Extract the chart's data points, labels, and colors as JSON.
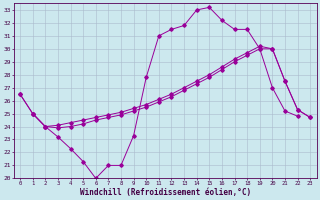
{
  "xlabel": "Windchill (Refroidissement éolien,°C)",
  "background_color": "#cce8ee",
  "line_color": "#990099",
  "grid_color": "#aabbcc",
  "xlim": [
    -0.5,
    23.5
  ],
  "ylim": [
    20,
    33.5
  ],
  "xticks": [
    0,
    1,
    2,
    3,
    4,
    5,
    6,
    7,
    8,
    9,
    10,
    11,
    12,
    13,
    14,
    15,
    16,
    17,
    18,
    19,
    20,
    21,
    22,
    23
  ],
  "yticks": [
    20,
    21,
    22,
    23,
    24,
    25,
    26,
    27,
    28,
    29,
    30,
    31,
    32,
    33
  ],
  "line1_x": [
    0,
    1,
    2,
    3,
    4,
    5,
    6,
    7,
    8,
    9,
    10,
    11,
    12,
    13,
    14,
    15,
    16,
    17,
    18,
    19,
    20,
    21,
    22
  ],
  "line1_y": [
    26.5,
    25.0,
    24.0,
    23.2,
    22.3,
    21.3,
    20.0,
    21.0,
    21.0,
    23.3,
    27.8,
    31.0,
    31.5,
    31.8,
    33.0,
    33.2,
    32.2,
    31.5,
    31.5,
    30.0,
    27.0,
    25.2,
    24.8
  ],
  "line2_x": [
    0,
    1,
    2,
    3,
    4,
    5,
    6,
    7,
    8,
    9,
    10,
    11,
    12,
    13,
    14,
    15,
    16,
    17,
    18,
    19,
    20,
    21,
    22,
    23
  ],
  "line2_y": [
    26.5,
    25.0,
    24.0,
    24.1,
    24.3,
    24.5,
    24.7,
    24.9,
    25.1,
    25.4,
    25.7,
    26.1,
    26.5,
    27.0,
    27.5,
    28.0,
    28.6,
    29.2,
    29.7,
    30.2,
    30.0,
    27.5,
    25.3,
    24.7
  ],
  "line3_x": [
    1,
    2,
    3,
    4,
    5,
    6,
    7,
    8,
    9,
    10,
    11,
    12,
    13,
    14,
    15,
    16,
    17,
    18,
    19,
    20,
    21,
    22,
    23
  ],
  "line3_y": [
    25.0,
    24.0,
    23.9,
    24.0,
    24.2,
    24.5,
    24.7,
    24.9,
    25.2,
    25.5,
    25.9,
    26.3,
    26.8,
    27.3,
    27.8,
    28.4,
    29.0,
    29.5,
    30.0,
    30.0,
    27.5,
    25.3,
    24.7
  ],
  "tick_fontsize": 4.5,
  "xlabel_fontsize": 5.5,
  "marker_size": 1.8,
  "line_width": 0.7
}
